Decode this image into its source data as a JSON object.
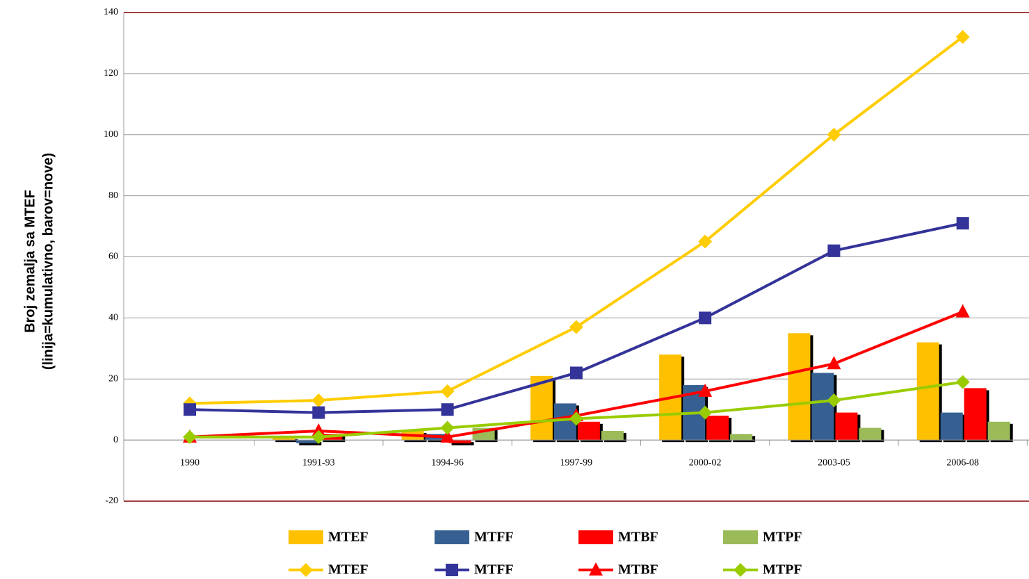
{
  "chart_data": {
    "type": "bar_line",
    "ylabel": [
      "Broj zemalja sa MTEF",
      "(linija=kumulativno, barov=nove)"
    ],
    "categories": [
      "1990",
      "1991-93",
      "1994-96",
      "1997-99",
      "2000-02",
      "2003-05",
      "2006-08"
    ],
    "ylim": [
      -20,
      140
    ],
    "yticks": [
      -20,
      0,
      20,
      40,
      60,
      80,
      100,
      120,
      140
    ],
    "grid": true,
    "legend": "bottom",
    "series": [
      {
        "name": "MTEF",
        "type": "bar",
        "color": "#ffc000",
        "values": [
          0,
          1,
          3,
          21,
          28,
          35,
          32
        ]
      },
      {
        "name": "MTFF",
        "type": "bar",
        "color": "#376092",
        "values": [
          0,
          -1,
          2,
          12,
          18,
          22,
          9
        ]
      },
      {
        "name": "MTBF",
        "type": "bar",
        "color": "#ff0000",
        "values": [
          0,
          2,
          -1,
          6,
          8,
          9,
          17
        ]
      },
      {
        "name": "MTPF",
        "type": "bar",
        "color": "#9bbb59",
        "values": [
          0,
          0,
          4,
          3,
          2,
          4,
          6
        ]
      },
      {
        "name": "MTEF",
        "type": "line",
        "marker": "diamond",
        "color": "#ffcc00",
        "values": [
          12,
          13,
          16,
          37,
          65,
          100,
          132
        ]
      },
      {
        "name": "MTFF",
        "type": "line",
        "marker": "square",
        "color": "#333399",
        "values": [
          10,
          9,
          10,
          22,
          40,
          62,
          71
        ]
      },
      {
        "name": "MTBF",
        "type": "line",
        "marker": "triangle",
        "color": "#ff0000",
        "values": [
          1,
          3,
          1,
          8,
          16,
          25,
          42
        ]
      },
      {
        "name": "MTPF",
        "type": "line",
        "marker": "diamond",
        "color": "#99cc00",
        "values": [
          1,
          1,
          4,
          7,
          9,
          13,
          19
        ]
      }
    ]
  }
}
